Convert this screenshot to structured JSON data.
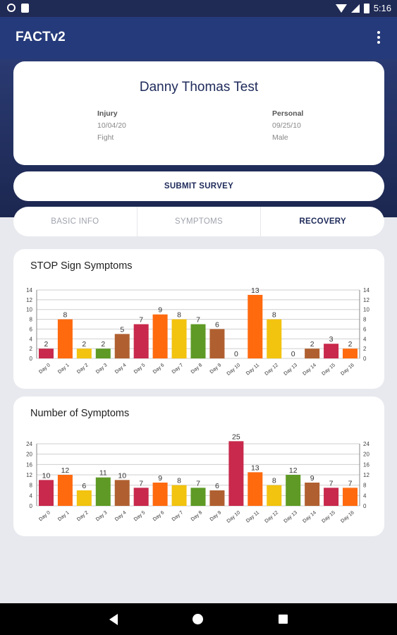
{
  "status_bar": {
    "time": "5:16"
  },
  "app": {
    "title": "FACTv2"
  },
  "profile": {
    "name": "Danny Thomas Test",
    "injury": {
      "heading": "Injury",
      "date": "10/04/20",
      "type": "Fight"
    },
    "personal": {
      "heading": "Personal",
      "dob": "09/25/10",
      "sex": "Male"
    }
  },
  "submit_label": "SUBMIT SURVEY",
  "tabs": [
    {
      "label": "BASIC INFO"
    },
    {
      "label": "SYMPTOMS"
    },
    {
      "label": "RECOVERY"
    }
  ],
  "bar_colors": [
    "#c8294c",
    "#ff6a0f",
    "#f2c30f",
    "#5e9a25",
    "#b06030"
  ],
  "chart_data": [
    {
      "type": "bar",
      "title": "STOP Sign Symptoms",
      "categories": [
        "Day 0",
        "Day 1",
        "Day 2",
        "Day 3",
        "Day 4",
        "Day 5",
        "Day 6",
        "Day 7",
        "Day 8",
        "Day 9",
        "Day 10",
        "Day 11",
        "Day 12",
        "Day 13",
        "Day 14",
        "Day 15",
        "Day 16"
      ],
      "values": [
        2,
        8,
        2,
        2,
        5,
        7,
        9,
        8,
        7,
        6,
        0,
        13,
        8,
        0,
        2,
        3,
        2
      ],
      "ylim": [
        0,
        14
      ],
      "yticks": [
        0,
        2,
        4,
        6,
        8,
        10,
        12,
        14
      ],
      "grid": true,
      "legend": "none"
    },
    {
      "type": "bar",
      "title": "Number of Symptoms",
      "categories": [
        "Day 0",
        "Day 1",
        "Day 2",
        "Day 3",
        "Day 4",
        "Day 5",
        "Day 6",
        "Day 7",
        "Day 8",
        "Day 9",
        "Day 10",
        "Day 11",
        "Day 12",
        "Day 13",
        "Day 14",
        "Day 15",
        "Day 16"
      ],
      "values": [
        10,
        12,
        6,
        11,
        10,
        7,
        9,
        8,
        7,
        6,
        25,
        13,
        8,
        12,
        9,
        7,
        7
      ],
      "ylim": [
        0,
        24
      ],
      "yticks": [
        0,
        4,
        8,
        12,
        16,
        20,
        24
      ],
      "grid": true,
      "legend": "none"
    }
  ]
}
